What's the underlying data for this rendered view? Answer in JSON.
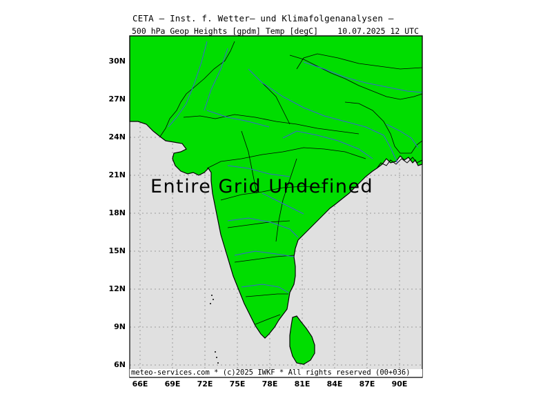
{
  "header": {
    "line1": "CETA — Inst. f. Wetter— und Klimafolgenanalysen —",
    "line2_left": "500 hPa Geop Heights [gpdm] Temp [degC]",
    "line2_right": "10.07.2025 12 UTC"
  },
  "map": {
    "message": "Entire Grid Undefined",
    "land_color": "#00dd00",
    "sea_color": "#e0e0e0",
    "river_color": "#3a62d6",
    "border_color": "#000000",
    "lat_labels": [
      "30N",
      "27N",
      "24N",
      "21N",
      "18N",
      "15N",
      "12N",
      "9N",
      "6N"
    ],
    "lon_labels": [
      "66E",
      "69E",
      "72E",
      "75E",
      "78E",
      "81E",
      "84E",
      "87E",
      "90E"
    ]
  },
  "footer": {
    "credit": "meteo-services.com * (c)2025 IWKF * All rights reserved (00+036)"
  }
}
